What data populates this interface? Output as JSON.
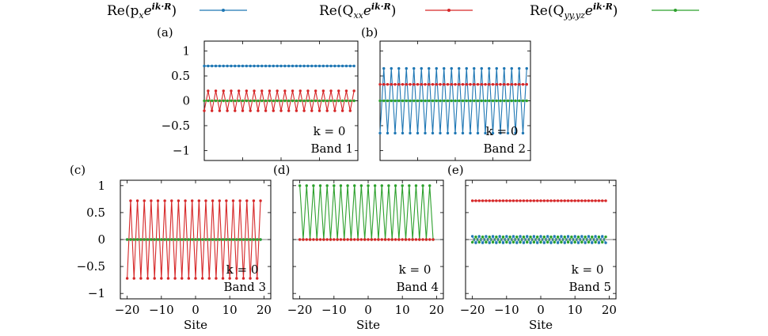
{
  "colors": {
    "px": "#1f77b4",
    "qxx": "#d62728",
    "qyy": "#2ca02c",
    "axis": "#000000",
    "zero": "#555555"
  },
  "legend": [
    {
      "label": "Re(p",
      "sub": "x",
      "tail": "e",
      "sup": "ik·R",
      "close": ")",
      "color_key": "px"
    },
    {
      "label": "Re(Q",
      "sub": "xx",
      "tail": "e",
      "sup": "ik·R",
      "close": ")",
      "color_key": "qxx"
    },
    {
      "label": "Re(Q",
      "sub": "yy,yz",
      "tail": "e",
      "sup": "ik·R",
      "close": ")",
      "color_key": "qyy"
    }
  ],
  "chart_data": [
    {
      "type": "line",
      "panel": "(a)",
      "k_label": "k = 0",
      "band_label": "Band 1",
      "xlim": [
        -20,
        20
      ],
      "ylim": [
        -1.2,
        1.2
      ],
      "yticks": [
        -1,
        -0.5,
        0,
        0.5,
        1
      ],
      "ytick_labels": [
        "−1",
        "−0.5",
        "0",
        "0.5",
        "1"
      ],
      "x_range": [
        -20,
        19
      ],
      "series": [
        {
          "color_key": "px",
          "pattern": "const",
          "value": 0.7
        },
        {
          "color_key": "qxx",
          "pattern": "alt",
          "value": 0.2
        },
        {
          "color_key": "qyy",
          "pattern": "const",
          "value": 0
        }
      ]
    },
    {
      "type": "line",
      "panel": "(b)",
      "k_label": "k = 0",
      "band_label": "Band 2",
      "xlim": [
        -20,
        20
      ],
      "ylim": [
        -1.2,
        1.2
      ],
      "yticks": [
        -1,
        -0.5,
        0,
        0.5,
        1
      ],
      "ytick_labels": [],
      "x_range": [
        -20,
        19
      ],
      "series": [
        {
          "color_key": "px",
          "pattern": "alt",
          "value": 0.65
        },
        {
          "color_key": "qxx",
          "pattern": "const",
          "value": 0.33
        },
        {
          "color_key": "qyy",
          "pattern": "const",
          "value": 0
        }
      ]
    },
    {
      "type": "line",
      "panel": "(c)",
      "k_label": "k = 0",
      "band_label": "Band 3",
      "xlim": [
        -22,
        22
      ],
      "ylim": [
        -1.1,
        1.1
      ],
      "yticks": [
        -1,
        -0.5,
        0,
        0.5,
        1
      ],
      "ytick_labels": [
        "−1",
        "−0.5",
        "0",
        "0.5",
        "1"
      ],
      "xticks": [
        -20,
        -10,
        0,
        10,
        20
      ],
      "xtick_labels": [
        "−20",
        "−10",
        "0",
        "10",
        "20"
      ],
      "xlabel": "Site",
      "x_range": [
        -20,
        19
      ],
      "series": [
        {
          "color_key": "qxx",
          "pattern": "alt",
          "value": 0.72
        },
        {
          "color_key": "px",
          "pattern": "const",
          "value": 0
        },
        {
          "color_key": "qyy",
          "pattern": "const",
          "value": 0
        }
      ]
    },
    {
      "type": "line",
      "panel": "(d)",
      "k_label": "k = 0",
      "band_label": "Band 4",
      "xlim": [
        -22,
        22
      ],
      "ylim": [
        -1.1,
        1.1
      ],
      "yticks": [
        -1,
        -0.5,
        0,
        0.5,
        1
      ],
      "ytick_labels": [],
      "xticks": [
        -20,
        -10,
        0,
        10,
        20
      ],
      "xtick_labels": [
        "−20",
        "−10",
        "0",
        "10",
        "20"
      ],
      "xlabel": "Site",
      "x_range": [
        -20,
        19
      ],
      "series": [
        {
          "color_key": "qyy",
          "pattern": "alt01",
          "value": 1.0
        },
        {
          "color_key": "qxx",
          "pattern": "const",
          "value": 0
        }
      ]
    },
    {
      "type": "line",
      "panel": "(e)",
      "k_label": "k = 0",
      "band_label": "Band 5",
      "xlim": [
        -22,
        22
      ],
      "ylim": [
        -1.1,
        1.1
      ],
      "yticks": [
        -1,
        -0.5,
        0,
        0.5,
        1
      ],
      "ytick_labels": [],
      "xticks": [
        -20,
        -10,
        0,
        10,
        20
      ],
      "xtick_labels": [
        "−20",
        "−10",
        "0",
        "10",
        "20"
      ],
      "xlabel": "Site",
      "x_range": [
        -20,
        19
      ],
      "series": [
        {
          "color_key": "qxx",
          "pattern": "const",
          "value": 0.72
        },
        {
          "color_key": "qyy",
          "pattern": "alt",
          "value": 0.05
        },
        {
          "color_key": "px",
          "pattern": "alt",
          "value": 0.06,
          "phase": 1
        }
      ]
    }
  ]
}
